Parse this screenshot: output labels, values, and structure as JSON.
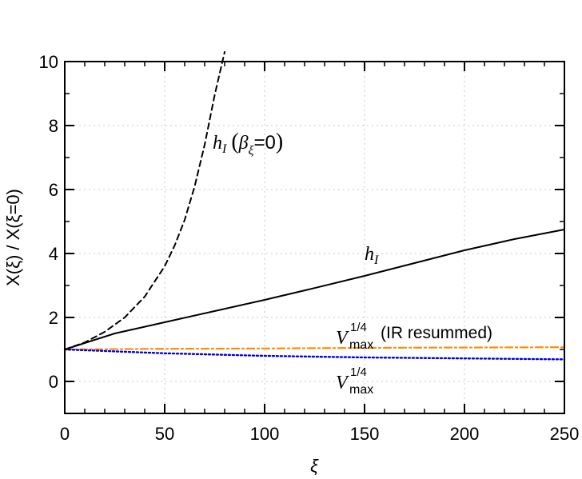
{
  "chart_data": {
    "type": "line",
    "xlabel": "ξ",
    "ylabel": "X(ξ) / X(ξ=0)",
    "xlim": [
      0,
      250
    ],
    "ylim": [
      -1,
      10
    ],
    "grid": true,
    "x_ticks": [
      0,
      50,
      100,
      150,
      200,
      250
    ],
    "y_ticks": [
      0,
      2,
      4,
      6,
      8,
      10
    ],
    "x_tick_labels": [
      "0",
      "50",
      "100",
      "150",
      "200",
      "250"
    ],
    "y_tick_labels": [
      "0",
      "2",
      "4",
      "6",
      "8",
      "10"
    ],
    "series": [
      {
        "name": "h_I (β_ξ=0)",
        "color": "#000000",
        "style": "dashed",
        "x": [
          0,
          10,
          20,
          30,
          40,
          50,
          55,
          60,
          65,
          70,
          75,
          80
        ],
        "y": [
          1.0,
          1.22,
          1.55,
          2.0,
          2.65,
          3.6,
          4.25,
          5.05,
          6.1,
          7.4,
          8.95,
          10.3
        ]
      },
      {
        "name": "h_I",
        "color": "#000000",
        "style": "solid",
        "x": [
          0,
          25,
          50,
          75,
          100,
          125,
          150,
          175,
          200,
          225,
          250
        ],
        "y": [
          1.0,
          1.5,
          1.85,
          2.2,
          2.55,
          2.92,
          3.3,
          3.7,
          4.1,
          4.45,
          4.75
        ]
      },
      {
        "name": "V_max^1/4 (IR resummed)",
        "color": "#ff8c00",
        "style": "dashdot",
        "x": [
          0,
          50,
          100,
          150,
          200,
          250
        ],
        "y": [
          1.0,
          1.02,
          1.03,
          1.05,
          1.06,
          1.07
        ]
      },
      {
        "name": "V_max^1/4",
        "color": "#0000ee",
        "style": "dotted",
        "x": [
          0,
          50,
          100,
          150,
          200,
          250
        ],
        "y": [
          1.0,
          0.88,
          0.8,
          0.75,
          0.72,
          0.69
        ]
      }
    ],
    "annotations": {
      "dashed_h": "h",
      "dashed_sub": "I",
      "dashed_open": "(",
      "dashed_beta": "β",
      "dashed_beta_sub": "ξ",
      "dashed_eq": "=0",
      "dashed_close": ")",
      "solid_h": "h",
      "solid_sub": "I",
      "orange_V": "V",
      "orange_sup": "1/4",
      "orange_sub": "max",
      "orange_text": "(IR resummed)",
      "blue_V": "V",
      "blue_sup": "1/4",
      "blue_sub": "max"
    }
  }
}
